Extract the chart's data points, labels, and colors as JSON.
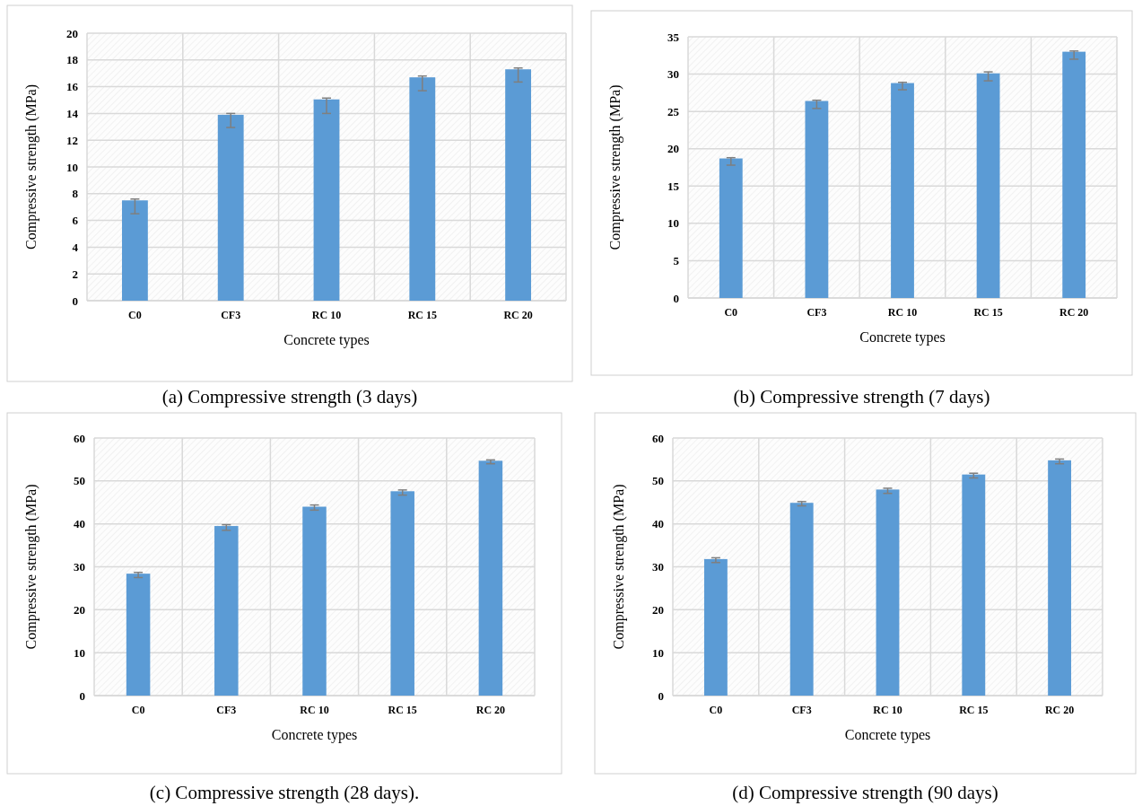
{
  "chart_data": [
    {
      "type": "bar",
      "title": "(a) Compressive strength (3 days)",
      "xlabel": "Concrete types",
      "ylabel": "Compressive strength (MPa)",
      "categories": [
        "C0",
        "CF3",
        "RC 10",
        "RC 15",
        "RC 20"
      ],
      "values": [
        7.5,
        13.9,
        15.05,
        16.7,
        17.3
      ],
      "errors": [
        [
          6.5,
          7.6
        ],
        [
          12.95,
          14.0
        ],
        [
          14.0,
          15.15
        ],
        [
          15.7,
          16.8
        ],
        [
          16.35,
          17.4
        ]
      ],
      "color": "#5b9bd5",
      "ylim": [
        0,
        20
      ],
      "yticks": [
        0,
        2,
        4,
        6,
        8,
        10,
        12,
        14,
        16,
        18,
        20
      ],
      "grid": true
    },
    {
      "type": "bar",
      "title": "(b) Compressive strength (7 days)",
      "xlabel": "Concrete types",
      "ylabel": "Compressive strength (MPa)",
      "categories": [
        "C0",
        "CF3",
        "RC 10",
        "RC 15",
        "RC 20"
      ],
      "values": [
        18.7,
        26.4,
        28.8,
        30.1,
        33.0
      ],
      "errors": [
        [
          17.8,
          18.8
        ],
        [
          25.4,
          26.5
        ],
        [
          27.9,
          28.9
        ],
        [
          29.1,
          30.3
        ],
        [
          32.0,
          33.1
        ]
      ],
      "color": "#5b9bd5",
      "ylim": [
        0,
        35
      ],
      "yticks": [
        0,
        5,
        10,
        15,
        20,
        25,
        30,
        35
      ],
      "grid": true
    },
    {
      "type": "bar",
      "title": "(c) Compressive strength (28 days).",
      "xlabel": "Concrete types",
      "ylabel": "Compressive strength (MPa)",
      "categories": [
        "C0",
        "CF3",
        "RC 10",
        "RC 15",
        "RC 20"
      ],
      "values": [
        28.4,
        39.5,
        44.0,
        47.6,
        54.7
      ],
      "errors": [
        [
          27.5,
          28.7
        ],
        [
          38.5,
          39.8
        ],
        [
          43.2,
          44.4
        ],
        [
          46.7,
          47.9
        ],
        [
          54.0,
          54.9
        ]
      ],
      "color": "#5b9bd5",
      "ylim": [
        0,
        60
      ],
      "yticks": [
        0,
        10,
        20,
        30,
        40,
        50,
        60
      ],
      "grid": true
    },
    {
      "type": "bar",
      "title": "(d) Compressive strength (90 days)",
      "xlabel": "Concrete types",
      "ylabel": "Compressive strength (MPa)",
      "categories": [
        "C0",
        "CF3",
        "RC 10",
        "RC 15",
        "RC 20"
      ],
      "values": [
        31.8,
        44.9,
        48.0,
        51.5,
        54.8
      ],
      "errors": [
        [
          31.0,
          32.1
        ],
        [
          44.2,
          45.2
        ],
        [
          47.1,
          48.3
        ],
        [
          50.7,
          51.8
        ],
        [
          54.0,
          55.1
        ]
      ],
      "color": "#5b9bd5",
      "ylim": [
        0,
        60
      ],
      "yticks": [
        0,
        10,
        20,
        30,
        40,
        50,
        60
      ],
      "grid": true
    }
  ]
}
